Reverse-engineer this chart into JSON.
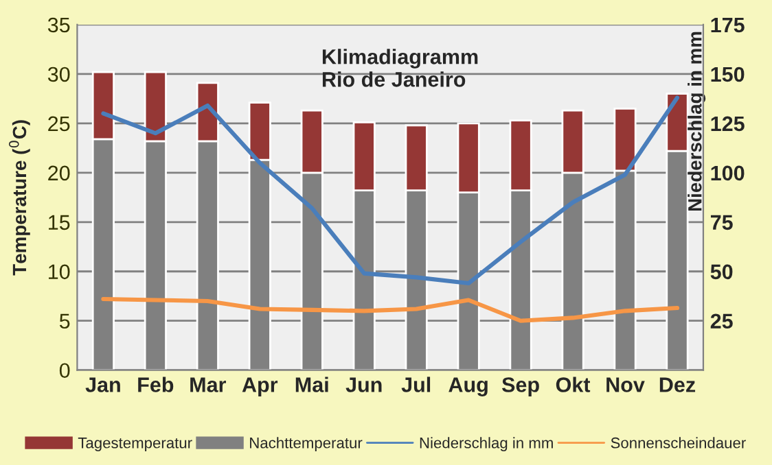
{
  "chart_data": {
    "type": "bar",
    "title": "Klimadiagramm\nRio de Janeiro",
    "ylabel": "Temperature ($^{0}$C)",
    "y2label": "Niederschlag in mm",
    "categories": [
      "Jan",
      "Feb",
      "Mar",
      "Apr",
      "Mai",
      "Jun",
      "Jul",
      "Aug",
      "Sep",
      "Okt",
      "Nov",
      "Dez"
    ],
    "stacked": true,
    "series": [
      {
        "name": "Nachttemperatur",
        "color": "#808080",
        "values": [
          23.4,
          23.2,
          23.2,
          21.3,
          20.0,
          18.2,
          18.2,
          18.0,
          18.2,
          20.0,
          20.2,
          22.2
        ]
      },
      {
        "name": "Tagestemperatur",
        "color": "#953735",
        "values": [
          6.8,
          7.0,
          5.9,
          5.8,
          6.3,
          6.9,
          6.6,
          7.0,
          7.1,
          6.3,
          6.3,
          5.8
        ]
      },
      {
        "name": "Niederschlag in mm",
        "type": "line",
        "axis": "y2",
        "color": "#4a7ebb",
        "values": [
          130,
          120,
          134,
          105,
          82,
          49,
          47,
          44,
          65,
          85,
          99,
          138
        ]
      },
      {
        "name": "Sonnenscheindauer",
        "type": "line",
        "color": "#f79646",
        "values": [
          7.2,
          7.1,
          7.0,
          6.2,
          6.1,
          6.0,
          6.2,
          7.1,
          5.0,
          5.3,
          6.0,
          6.3
        ]
      }
    ],
    "ylim": [
      0,
      35
    ],
    "yticks": [
      0,
      5,
      10,
      15,
      20,
      25,
      30,
      35
    ],
    "y2lim": [
      0,
      175
    ],
    "y2ticks": [
      25,
      50,
      75,
      100,
      125,
      150,
      175
    ],
    "grid": "y",
    "legend": "bottom",
    "marker": "none",
    "line_style": "solid"
  }
}
